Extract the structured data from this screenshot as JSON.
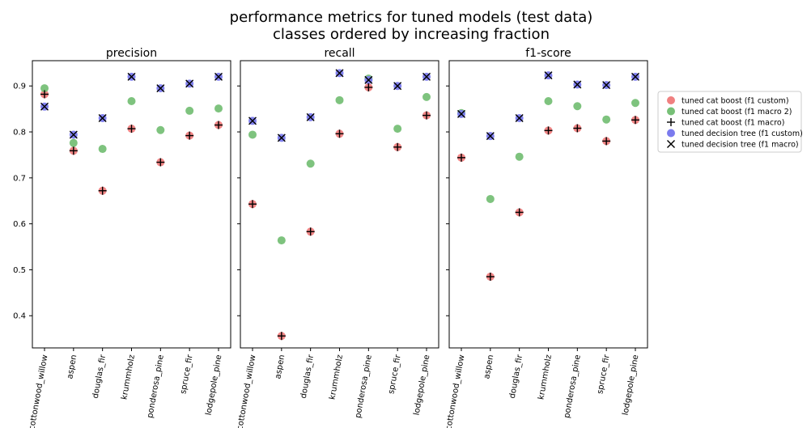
{
  "figure": {
    "title_line1": "performance metrics for tuned models (test data)",
    "title_line2": "classes ordered by increasing fraction"
  },
  "legend": {
    "entries": [
      {
        "label": "tuned cat boost (f1 custom)",
        "marker": "circle",
        "color": "#f08080"
      },
      {
        "label": "tuned cat boost (f1 macro 2)",
        "marker": "circle",
        "color": "#77c077"
      },
      {
        "label": "tuned cat boost (f1 macro)",
        "marker": "plus",
        "color": "#000000"
      },
      {
        "label": "tuned decision tree (f1 custom)",
        "marker": "circle",
        "color": "#7b7bee"
      },
      {
        "label": "tuned decision tree (f1 macro)",
        "marker": "x",
        "color": "#000000"
      }
    ]
  },
  "chart_data": [
    {
      "type": "scatter",
      "title": "precision",
      "categories": [
        "cottonwood_willow",
        "aspen",
        "douglas_fir",
        "krummholz",
        "ponderosa_pine",
        "spruce_fir",
        "lodgepole_pine"
      ],
      "ylim": [
        0.33,
        0.955
      ],
      "yticks": [
        "0.4",
        "0.5",
        "0.6",
        "0.7",
        "0.8",
        "0.9"
      ],
      "series": [
        {
          "name": "tuned cat boost (f1 custom)",
          "values": [
            0.882,
            0.759,
            0.672,
            0.807,
            0.734,
            0.792,
            0.815
          ]
        },
        {
          "name": "tuned cat boost (f1 macro 2)",
          "values": [
            0.895,
            0.776,
            0.763,
            0.867,
            0.804,
            0.846,
            0.851
          ]
        },
        {
          "name": "tuned cat boost (f1 macro)",
          "values": [
            0.882,
            0.759,
            0.672,
            0.807,
            0.734,
            0.792,
            0.815
          ]
        },
        {
          "name": "tuned decision tree (f1 custom)",
          "values": [
            0.855,
            0.794,
            0.83,
            0.92,
            0.895,
            0.905,
            0.92
          ]
        },
        {
          "name": "tuned decision tree (f1 macro)",
          "values": [
            0.855,
            0.794,
            0.83,
            0.92,
            0.895,
            0.905,
            0.92
          ]
        }
      ]
    },
    {
      "type": "scatter",
      "title": "recall",
      "categories": [
        "cottonwood_willow",
        "aspen",
        "douglas_fir",
        "krummholz",
        "ponderosa_pine",
        "spruce_fir",
        "lodgepole_pine"
      ],
      "ylim": [
        0.33,
        0.955
      ],
      "series": [
        {
          "name": "tuned cat boost (f1 custom)",
          "values": [
            0.643,
            0.356,
            0.583,
            0.796,
            0.897,
            0.767,
            0.836
          ]
        },
        {
          "name": "tuned cat boost (f1 macro 2)",
          "values": [
            0.794,
            0.564,
            0.731,
            0.869,
            0.916,
            0.807,
            0.876
          ]
        },
        {
          "name": "tuned cat boost (f1 macro)",
          "values": [
            0.643,
            0.356,
            0.583,
            0.796,
            0.897,
            0.767,
            0.836
          ]
        },
        {
          "name": "tuned decision tree (f1 custom)",
          "values": [
            0.824,
            0.787,
            0.832,
            0.928,
            0.913,
            0.9,
            0.92
          ]
        },
        {
          "name": "tuned decision tree (f1 macro)",
          "values": [
            0.824,
            0.787,
            0.832,
            0.928,
            0.913,
            0.9,
            0.92
          ]
        }
      ]
    },
    {
      "type": "scatter",
      "title": "f1-score",
      "categories": [
        "cottonwood_willow",
        "aspen",
        "douglas_fir",
        "krummholz",
        "ponderosa_pine",
        "spruce_fir",
        "lodgepole_pine"
      ],
      "ylim": [
        0.33,
        0.955
      ],
      "series": [
        {
          "name": "tuned cat boost (f1 custom)",
          "values": [
            0.744,
            0.485,
            0.625,
            0.803,
            0.808,
            0.78,
            0.826
          ]
        },
        {
          "name": "tuned cat boost (f1 macro 2)",
          "values": [
            0.841,
            0.654,
            0.746,
            0.867,
            0.856,
            0.827,
            0.863
          ]
        },
        {
          "name": "tuned cat boost (f1 macro)",
          "values": [
            0.744,
            0.485,
            0.625,
            0.803,
            0.808,
            0.78,
            0.826
          ]
        },
        {
          "name": "tuned decision tree (f1 custom)",
          "values": [
            0.839,
            0.791,
            0.83,
            0.923,
            0.903,
            0.902,
            0.92
          ]
        },
        {
          "name": "tuned decision tree (f1 macro)",
          "values": [
            0.839,
            0.791,
            0.83,
            0.923,
            0.903,
            0.902,
            0.92
          ]
        }
      ]
    }
  ]
}
